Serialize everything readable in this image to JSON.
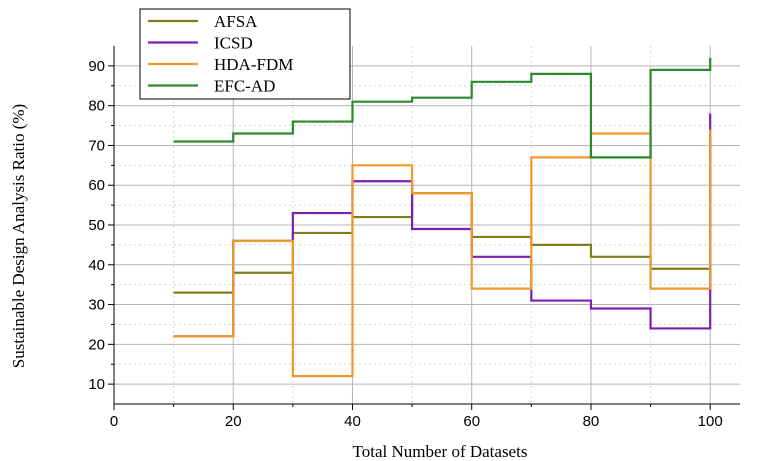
{
  "chart_data": {
    "type": "line",
    "step": true,
    "xlabel": "Total Number of Datasets",
    "ylabel": "Sustainable Design Analysis Ratio (%)",
    "xlim": [
      0,
      105
    ],
    "ylim": [
      5,
      95
    ],
    "x_ticks": [
      0,
      20,
      40,
      60,
      80,
      100
    ],
    "y_ticks": [
      10,
      20,
      30,
      40,
      50,
      60,
      70,
      80,
      90
    ],
    "grid": true,
    "legend_position": "top-left",
    "x": [
      10,
      20,
      30,
      40,
      50,
      60,
      70,
      80,
      90,
      100
    ],
    "series": [
      {
        "name": "AFSA",
        "color": "#7f7f1a",
        "values": [
          33,
          38,
          48,
          52,
          58,
          47,
          45,
          42,
          39,
          34
        ]
      },
      {
        "name": "ICSD",
        "color": "#7a1fb0",
        "values": [
          22,
          46,
          53,
          61,
          49,
          42,
          31,
          29,
          24,
          78
        ]
      },
      {
        "name": "HDA-FDM",
        "color": "#f0982c",
        "values": [
          22,
          46,
          12,
          65,
          58,
          34,
          67,
          73,
          34,
          74
        ]
      },
      {
        "name": "EFC-AD",
        "color": "#2a8a2a",
        "values": [
          71,
          73,
          76,
          81,
          82,
          86,
          88,
          67,
          89,
          92
        ]
      }
    ]
  }
}
